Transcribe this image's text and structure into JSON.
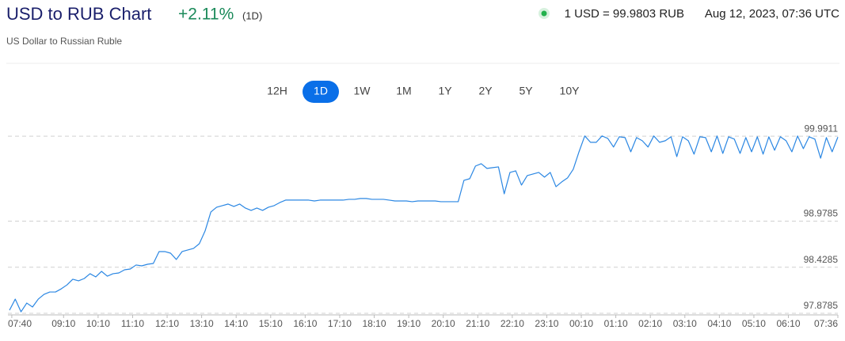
{
  "header": {
    "title": "USD to RUB Chart",
    "change": "+2.11%",
    "period": "(1D)",
    "subtitle": "US Dollar to Russian Ruble",
    "rate": "1 USD = 99.9803 RUB",
    "timestamp": "Aug 12, 2023, 07:36 UTC"
  },
  "ranges": [
    "12H",
    "1D",
    "1W",
    "1M",
    "1Y",
    "2Y",
    "5Y",
    "10Y"
  ],
  "selected_range": "1D",
  "chart_data": {
    "type": "line",
    "x": [
      "07:36",
      "07:46",
      "07:56",
      "08:06",
      "08:16",
      "08:26",
      "08:36",
      "08:46",
      "08:56",
      "09:06",
      "09:16",
      "09:26",
      "09:36",
      "09:46",
      "09:56",
      "10:06",
      "10:16",
      "10:26",
      "10:36",
      "10:46",
      "10:56",
      "11:06",
      "11:16",
      "11:26",
      "11:36",
      "11:46",
      "11:56",
      "12:06",
      "12:16",
      "12:26",
      "12:36",
      "12:46",
      "12:56",
      "13:06",
      "13:16",
      "13:26",
      "13:36",
      "13:46",
      "13:56",
      "14:06",
      "14:16",
      "14:26",
      "14:36",
      "14:46",
      "14:56",
      "15:06",
      "15:16",
      "15:26",
      "15:36",
      "15:46",
      "15:56",
      "16:06",
      "16:16",
      "16:26",
      "16:36",
      "16:46",
      "16:56",
      "17:06",
      "17:16",
      "17:26",
      "17:36",
      "17:46",
      "17:56",
      "18:06",
      "18:16",
      "18:26",
      "18:36",
      "18:46",
      "18:56",
      "19:06",
      "19:16",
      "19:26",
      "19:36",
      "19:46",
      "19:56",
      "20:06",
      "20:16",
      "20:26",
      "20:36",
      "20:46",
      "20:56",
      "21:06",
      "21:16",
      "21:26",
      "21:36",
      "21:46",
      "21:56",
      "22:06",
      "22:16",
      "22:26",
      "22:36",
      "22:46",
      "22:56",
      "23:06",
      "23:16",
      "23:26",
      "23:36",
      "23:46",
      "23:56",
      "00:06",
      "00:16",
      "00:26",
      "00:36",
      "00:46",
      "00:56",
      "01:06",
      "01:16",
      "01:26",
      "01:36",
      "01:46",
      "01:56",
      "02:06",
      "02:16",
      "02:26",
      "02:36",
      "02:46",
      "02:56",
      "03:06",
      "03:16",
      "03:26",
      "03:36",
      "03:46",
      "03:56",
      "04:06",
      "04:16",
      "04:26",
      "04:36",
      "04:46",
      "04:56",
      "05:06",
      "05:16",
      "05:26",
      "05:36",
      "05:46",
      "05:56",
      "06:06",
      "06:16",
      "06:26",
      "06:36",
      "06:46",
      "06:56",
      "07:06",
      "07:16",
      "07:26",
      "07:36"
    ],
    "values": [
      97.916,
      98.048,
      97.897,
      98.001,
      97.954,
      98.048,
      98.105,
      98.133,
      98.133,
      98.171,
      98.218,
      98.285,
      98.266,
      98.294,
      98.351,
      98.313,
      98.379,
      98.322,
      98.351,
      98.36,
      98.398,
      98.407,
      98.455,
      98.445,
      98.464,
      98.473,
      98.615,
      98.615,
      98.596,
      98.521,
      98.615,
      98.634,
      98.653,
      98.709,
      98.861,
      99.087,
      99.144,
      99.163,
      99.182,
      99.153,
      99.182,
      99.134,
      99.106,
      99.134,
      99.106,
      99.144,
      99.163,
      99.2,
      99.229,
      99.229,
      99.229,
      99.229,
      99.229,
      99.219,
      99.229,
      99.229,
      99.229,
      99.229,
      99.229,
      99.238,
      99.238,
      99.248,
      99.248,
      99.238,
      99.238,
      99.238,
      99.229,
      99.219,
      99.219,
      99.219,
      99.21,
      99.219,
      99.219,
      99.219,
      99.219,
      99.21,
      99.21,
      99.21,
      99.21,
      99.465,
      99.484,
      99.635,
      99.663,
      99.607,
      99.616,
      99.625,
      99.304,
      99.559,
      99.578,
      99.408,
      99.521,
      99.54,
      99.559,
      99.503,
      99.559,
      99.389,
      99.446,
      99.493,
      99.597,
      99.805,
      99.994,
      99.918,
      99.918,
      99.994,
      99.965,
      99.862,
      99.984,
      99.975,
      99.805,
      99.975,
      99.937,
      99.862,
      99.994,
      99.918,
      99.937,
      99.984,
      99.748,
      99.984,
      99.937,
      99.777,
      99.984,
      99.975,
      99.805,
      99.994,
      99.786,
      99.984,
      99.956,
      99.786,
      99.975,
      99.805,
      99.984,
      99.777,
      99.984,
      99.824,
      99.984,
      99.937,
      99.805,
      99.994,
      99.843,
      99.984,
      99.956,
      99.729,
      99.975,
      99.805,
      99.9803
    ],
    "color": "#2b87e3",
    "ylim": [
      97.86,
      100.2
    ],
    "yticks": [
      97.8785,
      98.4285,
      98.9785,
      99.9911
    ],
    "xticks": [
      "07:40",
      "09:10",
      "10:10",
      "11:10",
      "12:10",
      "13:10",
      "14:10",
      "15:10",
      "16:10",
      "17:10",
      "18:10",
      "19:10",
      "20:10",
      "21:10",
      "22:10",
      "23:10",
      "00:10",
      "01:10",
      "02:10",
      "03:10",
      "04:10",
      "05:10",
      "06:10",
      "07:36"
    ],
    "grid": true
  }
}
